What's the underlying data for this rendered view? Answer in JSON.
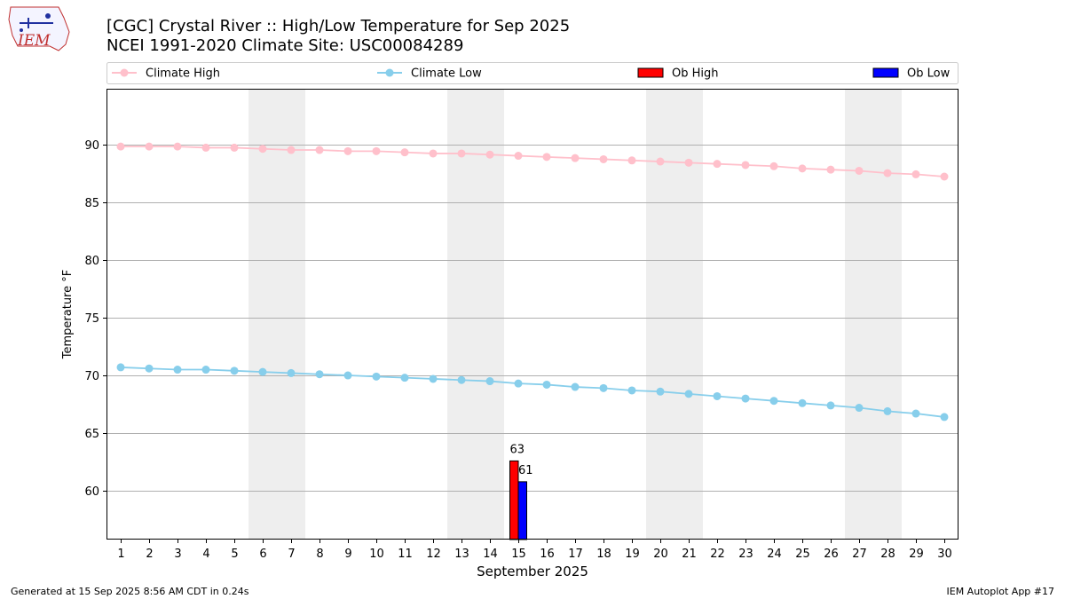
{
  "header": {
    "title": "[CGC] Crystal River :: High/Low Temperature for Sep 2025",
    "subtitle": "NCEI 1991-2020 Climate Site: USC00084289"
  },
  "logo": {
    "text": "IEM"
  },
  "footer": {
    "left": "Generated at 15 Sep 2025 8:56 AM CDT in 0.24s",
    "right": "IEM Autoplot App #17"
  },
  "legend": {
    "items": [
      {
        "label": "Climate High",
        "kind": "line",
        "color": "#ffc0cb"
      },
      {
        "label": "Climate Low",
        "kind": "line",
        "color": "#87ceeb"
      },
      {
        "label": "Ob High",
        "kind": "bar",
        "color": "#ff0000"
      },
      {
        "label": "Ob Low",
        "kind": "bar",
        "color": "#0000ff"
      }
    ]
  },
  "colors": {
    "climate_high": "#ffc0cb",
    "climate_low": "#87ceeb",
    "ob_high": "#ff0000",
    "ob_low": "#0000ff",
    "weekend_band": "#eeeeee",
    "grid": "#b0b0b0"
  },
  "chart_data": {
    "type": "line",
    "xlabel": "September 2025",
    "ylabel": "Temperature °F",
    "x": [
      1,
      2,
      3,
      4,
      5,
      6,
      7,
      8,
      9,
      10,
      11,
      12,
      13,
      14,
      15,
      16,
      17,
      18,
      19,
      20,
      21,
      22,
      23,
      24,
      25,
      26,
      27,
      28,
      29,
      30
    ],
    "xlim": [
      0.5,
      30.5
    ],
    "ylim": [
      55.8,
      94.8
    ],
    "yticks": [
      60,
      65,
      70,
      75,
      80,
      85,
      90
    ],
    "grid": "horizontal",
    "legend_position": "top",
    "shaded_days": [
      [
        6,
        7
      ],
      [
        13,
        14
      ],
      [
        20,
        21
      ],
      [
        27,
        28
      ]
    ],
    "series": [
      {
        "name": "Climate High",
        "kind": "line",
        "values": [
          89.8,
          89.8,
          89.8,
          89.7,
          89.7,
          89.6,
          89.5,
          89.5,
          89.4,
          89.4,
          89.3,
          89.2,
          89.2,
          89.1,
          89.0,
          88.9,
          88.8,
          88.7,
          88.6,
          88.5,
          88.4,
          88.3,
          88.2,
          88.1,
          87.9,
          87.8,
          87.7,
          87.5,
          87.4,
          87.2
        ]
      },
      {
        "name": "Climate Low",
        "kind": "line",
        "values": [
          70.7,
          70.6,
          70.5,
          70.5,
          70.4,
          70.3,
          70.2,
          70.1,
          70.0,
          69.9,
          69.8,
          69.7,
          69.6,
          69.5,
          69.3,
          69.2,
          69.0,
          68.9,
          68.7,
          68.6,
          68.4,
          68.2,
          68.0,
          67.8,
          67.6,
          67.4,
          67.2,
          66.9,
          66.7,
          66.4
        ]
      },
      {
        "name": "Ob High",
        "kind": "bar",
        "points": [
          {
            "x": 15,
            "value": 62.6,
            "label": "63"
          }
        ]
      },
      {
        "name": "Ob Low",
        "kind": "bar",
        "points": [
          {
            "x": 15,
            "value": 60.8,
            "label": "61"
          }
        ]
      }
    ]
  }
}
